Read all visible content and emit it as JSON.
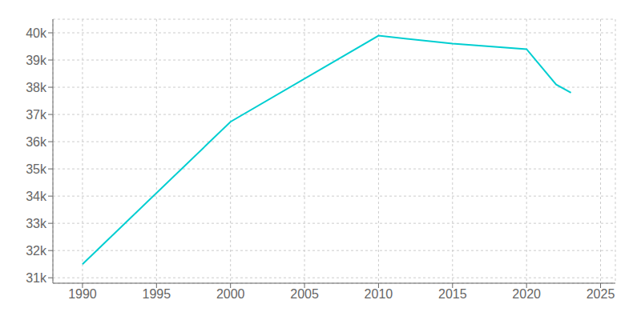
{
  "chart_data": {
    "type": "line",
    "x": [
      1990,
      2000,
      2010,
      2015,
      2020,
      2022,
      2023
    ],
    "values": [
      31500,
      36730,
      39895,
      39600,
      39400,
      38100,
      37800
    ],
    "color": "#00CED1",
    "xlim": [
      1988,
      2026
    ],
    "ylim": [
      30800,
      40500
    ],
    "xticks": [
      1990,
      1995,
      2000,
      2005,
      2010,
      2015,
      2020,
      2025
    ],
    "yticks": [
      {
        "value": 31000,
        "label": "31k"
      },
      {
        "value": 32000,
        "label": "32k"
      },
      {
        "value": 33000,
        "label": "33k"
      },
      {
        "value": 34000,
        "label": "34k"
      },
      {
        "value": 35000,
        "label": "35k"
      },
      {
        "value": 36000,
        "label": "36k"
      },
      {
        "value": 37000,
        "label": "37k"
      },
      {
        "value": 38000,
        "label": "38k"
      },
      {
        "value": 39000,
        "label": "39k"
      },
      {
        "value": 40000,
        "label": "40k"
      }
    ],
    "grid": true
  }
}
